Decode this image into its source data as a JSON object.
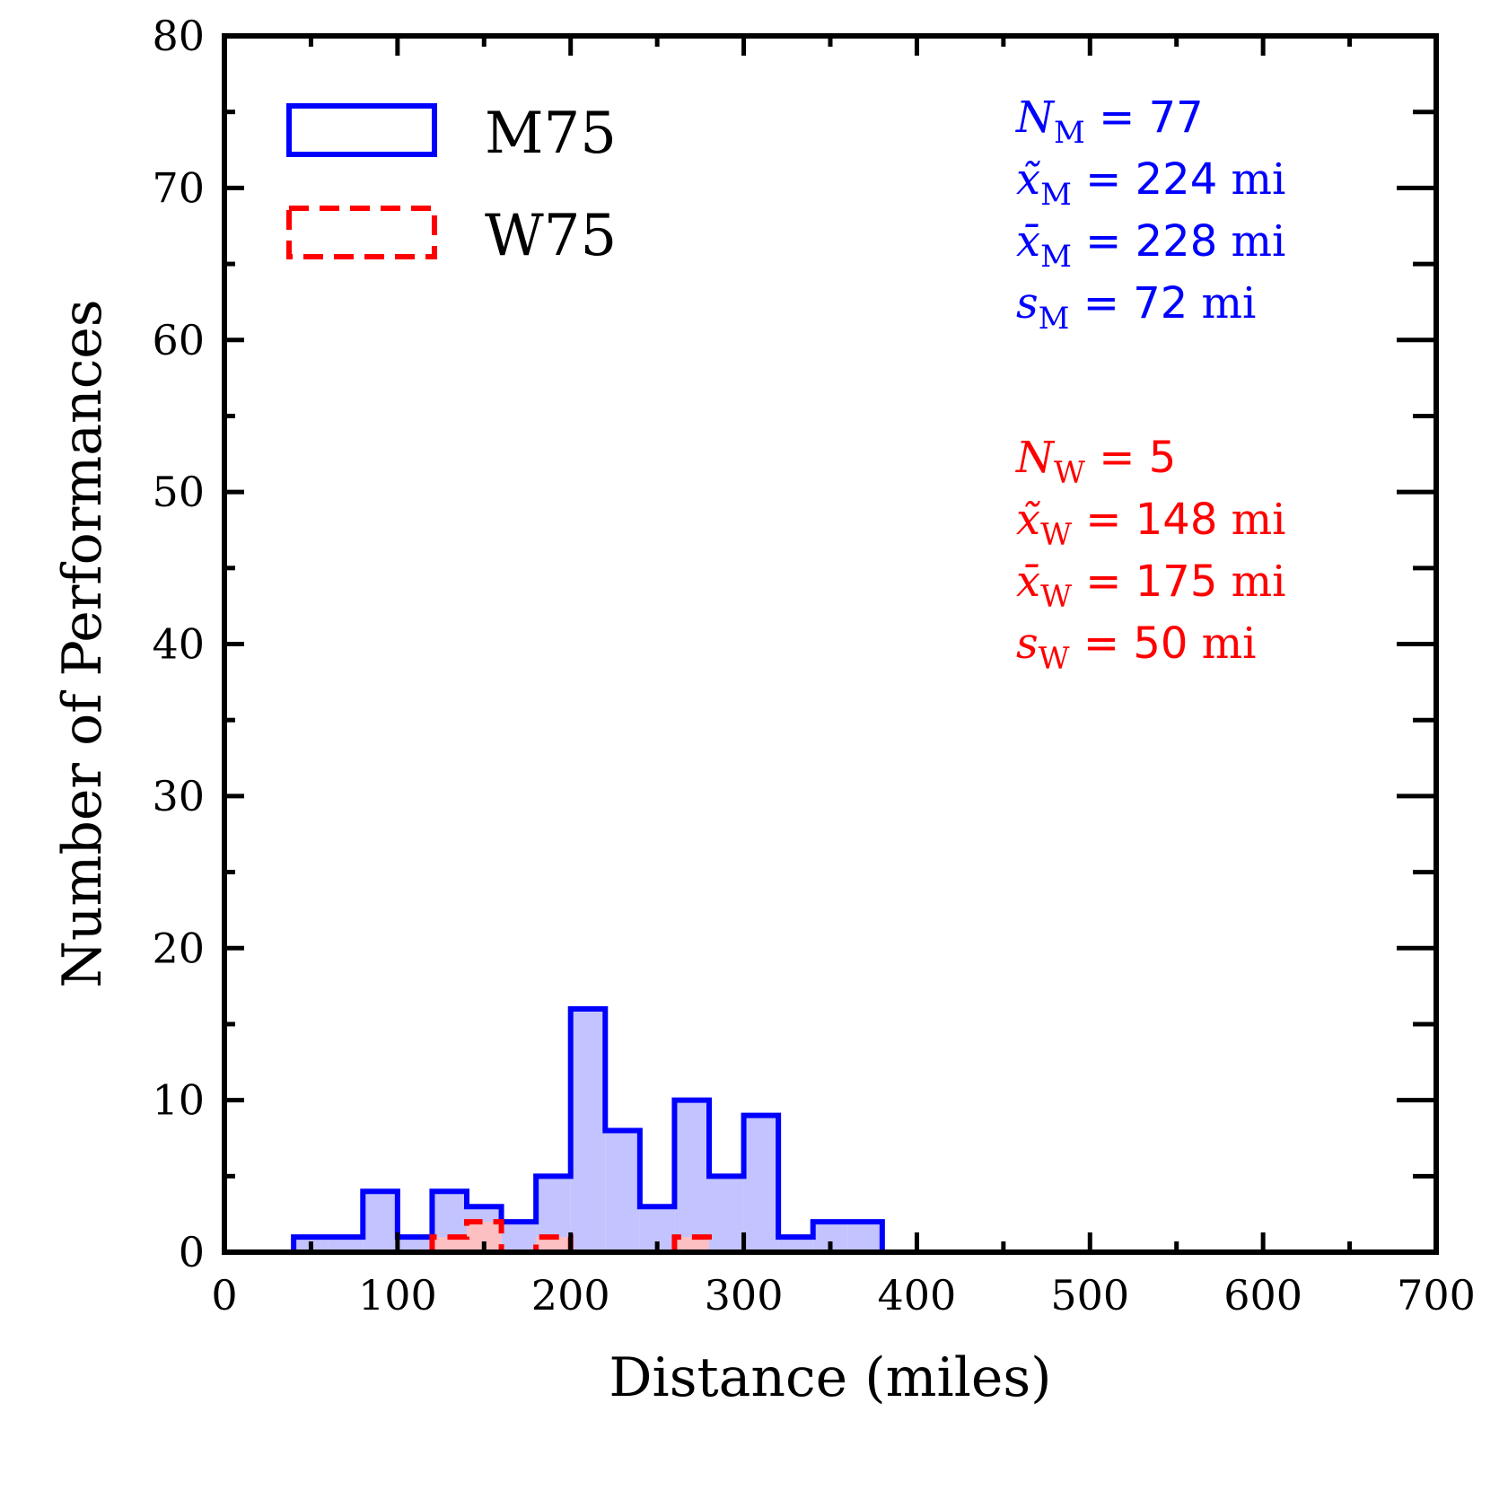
{
  "chart_data": {
    "type": "histogram",
    "xlabel": "Distance (miles)",
    "ylabel": "Number of Performances",
    "xlim": [
      0,
      700
    ],
    "ylim": [
      0,
      80
    ],
    "x_ticks": [
      "0",
      "100",
      "200",
      "300",
      "400",
      "500",
      "600",
      "700"
    ],
    "y_ticks": [
      "0",
      "10",
      "20",
      "30",
      "40",
      "50",
      "60",
      "70",
      "80"
    ],
    "bin_width": 20,
    "series": [
      {
        "name": "M75",
        "color": "#0000ff",
        "fill": "#c0c0ff",
        "line_style": "solid",
        "bin_starts": [
          40,
          60,
          80,
          100,
          120,
          140,
          160,
          180,
          200,
          220,
          240,
          260,
          280,
          300,
          320,
          340,
          360
        ],
        "counts": [
          1,
          1,
          4,
          1,
          4,
          3,
          2,
          5,
          16,
          8,
          3,
          10,
          5,
          9,
          1,
          2,
          2
        ]
      },
      {
        "name": "W75",
        "color": "#ff0000",
        "fill": "#ffc0c0",
        "line_style": "dashed",
        "bin_starts": [
          120,
          140,
          160,
          180,
          200,
          220,
          240,
          260
        ],
        "counts": [
          1,
          2,
          0,
          1,
          0,
          0,
          0,
          1
        ]
      }
    ],
    "legend": [
      "M75",
      "W75"
    ],
    "legend_position": "top-left",
    "annotations": {
      "men": {
        "color": "#0000ff",
        "lines": [
          {
            "var": "N",
            "sub": "M",
            "value": "77"
          },
          {
            "var": "x̃",
            "sub": "M",
            "value": "224",
            "unit": "mi"
          },
          {
            "var": "x̄",
            "sub": "M",
            "value": "228",
            "unit": "mi"
          },
          {
            "var": "s",
            "sub": "M",
            "value": "72",
            "unit": "mi"
          }
        ]
      },
      "women": {
        "color": "#ff0000",
        "lines": [
          {
            "var": "N",
            "sub": "W",
            "value": "5"
          },
          {
            "var": "x̃",
            "sub": "W",
            "value": "148",
            "unit": "mi"
          },
          {
            "var": "x̄",
            "sub": "W",
            "value": "175",
            "unit": "mi"
          },
          {
            "var": "s",
            "sub": "W",
            "value": "50",
            "unit": "mi"
          }
        ]
      }
    }
  }
}
